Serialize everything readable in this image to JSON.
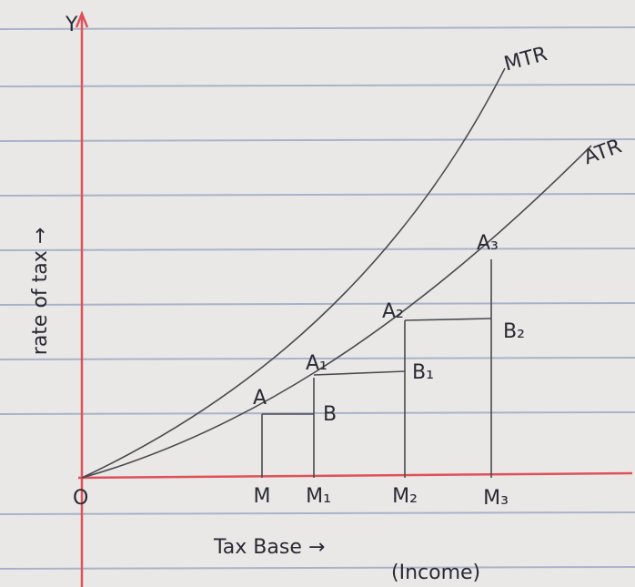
{
  "axes": {
    "y_label": "Y",
    "origin": "O",
    "y_title": "rate of tax →",
    "x_title": "Tax Base →",
    "x_subtitle": "(Income)"
  },
  "curves": [
    {
      "label": "MTR"
    },
    {
      "label": "ATR"
    }
  ],
  "points": [
    {
      "a": "A",
      "b": "B"
    },
    {
      "a": "A₁",
      "b": "B₁"
    },
    {
      "a": "A₂",
      "b": "B₂"
    },
    {
      "a": "A₃"
    }
  ],
  "x_marks": [
    "M",
    "M₁",
    "M₂",
    "M₃"
  ]
}
